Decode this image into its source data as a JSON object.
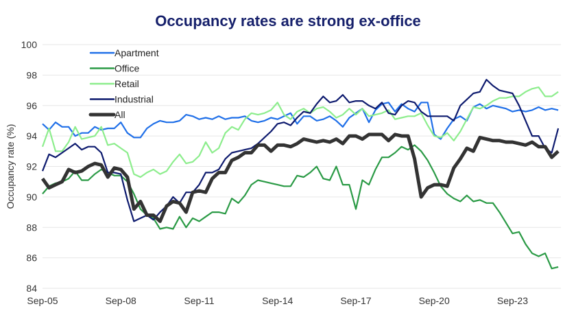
{
  "chart_data": {
    "type": "line",
    "title": "Occupancy rates are strong ex-office",
    "xlabel": "",
    "ylabel": "Occupancy rate (%)",
    "ylim": [
      84,
      100
    ],
    "yticks": [
      84,
      86,
      88,
      90,
      92,
      94,
      96,
      98,
      100
    ],
    "xticks": [
      "Sep-05",
      "Sep-08",
      "Sep-11",
      "Sep-14",
      "Sep-17",
      "Sep-20",
      "Sep-23"
    ],
    "x_start": "Sep-05",
    "x_frequency": "quarterly",
    "grid": "horizontal",
    "legend_placement": "top-left",
    "series": [
      {
        "name": "Apartment",
        "color": "#1f6fe8",
        "values": [
          94.8,
          94.4,
          94.9,
          94.6,
          94.6,
          94.0,
          94.2,
          94.2,
          94.6,
          94.4,
          94.5,
          94.5,
          94.9,
          94.2,
          93.9,
          93.9,
          94.5,
          94.8,
          95.0,
          94.9,
          94.9,
          95.0,
          95.4,
          95.3,
          95.1,
          95.2,
          95.1,
          95.3,
          95.1,
          95.2,
          95.2,
          95.3,
          95.0,
          94.9,
          95.0,
          95.2,
          95.1,
          95.3,
          95.5,
          94.8,
          95.3,
          95.3,
          95.0,
          95.1,
          95.3,
          95.0,
          94.6,
          95.2,
          95.5,
          95.8,
          94.9,
          95.7,
          96.1,
          96.2,
          95.6,
          96.1,
          95.8,
          95.6,
          96.2,
          96.2,
          94.1,
          93.8,
          94.5,
          95.1,
          95.3,
          95.0,
          95.9,
          96.1,
          95.8,
          96.0,
          95.9,
          95.8,
          95.6,
          95.7,
          95.6,
          95.7,
          95.9,
          95.7,
          95.8,
          95.7
        ]
      },
      {
        "name": "Office",
        "color": "#2a9a45",
        "values": [
          90.2,
          90.7,
          90.9,
          91.0,
          91.2,
          91.7,
          91.1,
          91.1,
          91.5,
          91.8,
          91.6,
          91.4,
          91.4,
          91.0,
          90.2,
          89.2,
          88.8,
          88.6,
          87.9,
          88.0,
          87.9,
          88.7,
          88.0,
          88.6,
          88.4,
          88.7,
          89.0,
          89.0,
          88.9,
          89.9,
          89.6,
          90.1,
          90.8,
          91.1,
          91.0,
          90.9,
          90.8,
          90.7,
          90.7,
          91.4,
          91.3,
          91.6,
          92.0,
          91.2,
          91.1,
          92.0,
          90.8,
          90.8,
          89.2,
          91.1,
          90.8,
          91.8,
          92.6,
          92.6,
          92.9,
          93.3,
          93.1,
          93.4,
          93.0,
          92.4,
          91.6,
          90.7,
          90.2,
          89.9,
          89.7,
          90.1,
          89.7,
          89.8,
          89.6,
          89.6,
          89.0,
          88.3,
          87.6,
          87.7,
          86.9,
          86.3,
          86.1,
          86.3,
          85.3,
          85.4
        ]
      },
      {
        "name": "Retail",
        "color": "#8ced8c",
        "values": [
          93.3,
          94.5,
          93.0,
          93.0,
          93.6,
          94.6,
          93.8,
          93.9,
          94.0,
          94.6,
          93.4,
          93.5,
          93.2,
          92.9,
          91.5,
          91.3,
          91.6,
          91.8,
          91.5,
          91.7,
          92.3,
          92.8,
          92.2,
          92.3,
          92.7,
          93.6,
          92.9,
          93.2,
          94.2,
          94.6,
          94.4,
          95.1,
          95.5,
          95.4,
          95.5,
          95.7,
          96.2,
          95.4,
          95.1,
          95.6,
          95.8,
          95.5,
          95.8,
          95.9,
          95.6,
          95.2,
          95.4,
          95.8,
          95.4,
          95.8,
          95.3,
          95.4,
          95.5,
          95.7,
          95.1,
          95.2,
          95.3,
          95.3,
          95.5,
          94.7,
          94.0,
          93.9,
          94.2,
          93.7,
          94.3,
          95.1,
          95.9,
          95.8,
          96.0,
          96.3,
          96.5,
          96.5,
          96.6,
          96.6,
          96.9,
          97.1,
          97.2,
          96.6,
          96.6,
          96.9
        ]
      },
      {
        "name": "Industrial",
        "color": "#0d1a6e",
        "values": [
          91.7,
          92.8,
          92.6,
          92.9,
          93.2,
          93.5,
          93.1,
          93.3,
          93.3,
          92.9,
          91.6,
          91.6,
          91.5,
          89.8,
          88.4,
          88.6,
          88.8,
          88.5,
          89.0,
          89.4,
          90.0,
          89.6,
          90.3,
          90.3,
          90.8,
          91.6,
          91.6,
          91.8,
          92.5,
          92.9,
          93.0,
          93.1,
          93.2,
          93.5,
          93.9,
          94.3,
          94.8,
          94.9,
          94.7,
          95.2,
          95.6,
          95.5,
          96.1,
          96.6,
          96.2,
          96.3,
          96.7,
          96.2,
          96.3,
          96.3,
          96.0,
          95.8,
          96.2,
          95.5,
          95.4,
          96.0,
          96.3,
          96.2,
          95.6,
          95.3,
          95.3,
          95.3,
          95.3,
          95.0,
          96.0,
          96.4,
          96.8,
          96.9,
          97.7,
          97.3,
          97.0,
          96.9,
          96.8,
          96.0,
          95.0,
          94.0,
          94.0,
          93.2,
          92.9,
          94.5
        ]
      },
      {
        "name": "All",
        "color": "#333333",
        "values": [
          91.2,
          90.6,
          90.8,
          91.0,
          91.8,
          91.6,
          91.7,
          92.0,
          92.2,
          92.1,
          91.3,
          91.9,
          91.8,
          91.3,
          89.2,
          89.7,
          88.8,
          88.8,
          88.4,
          89.4,
          89.7,
          89.6,
          89.0,
          90.3,
          90.4,
          90.3,
          91.2,
          91.6,
          91.6,
          92.4,
          92.6,
          92.9,
          92.9,
          93.4,
          93.4,
          93.0,
          93.4,
          93.4,
          93.3,
          93.5,
          93.8,
          93.7,
          93.6,
          93.7,
          93.6,
          93.8,
          93.5,
          94.0,
          94.0,
          93.8,
          94.1,
          94.1,
          94.1,
          93.7,
          94.1,
          94.0,
          94.0,
          92.5,
          90.0,
          90.6,
          90.8,
          90.8,
          90.7,
          91.9,
          92.5,
          93.2,
          93.0,
          93.9,
          93.8,
          93.7,
          93.7,
          93.6,
          93.6,
          93.5,
          93.4,
          93.6,
          93.3,
          93.3,
          92.6,
          93.0
        ]
      }
    ]
  }
}
